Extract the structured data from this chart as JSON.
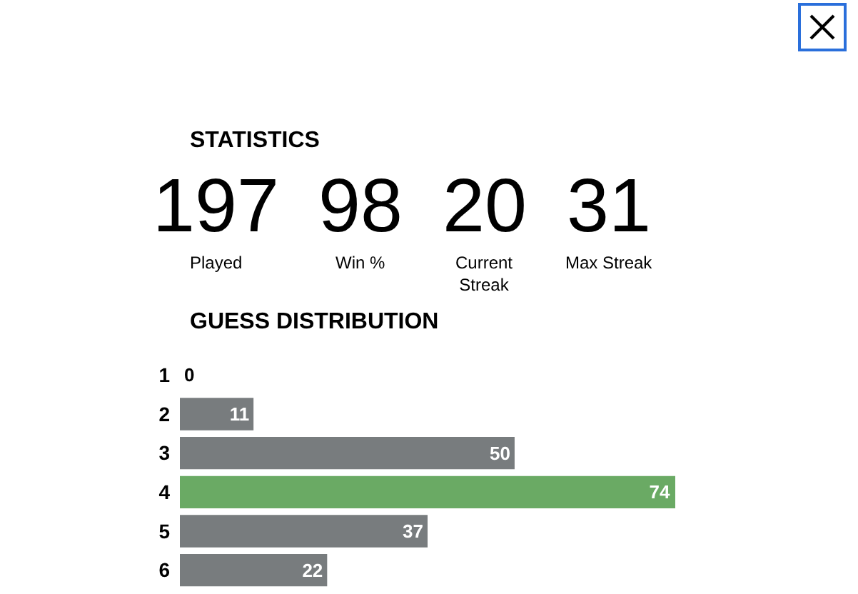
{
  "chart_data": [
    {
      "type": "other",
      "title": "STATISTICS",
      "categories": [
        "Played",
        "Win %",
        "Current Streak",
        "Max Streak"
      ],
      "values": [
        197,
        98,
        20,
        31
      ],
      "data_labels": true
    },
    {
      "type": "bar",
      "title": "GUESS DISTRIBUTION",
      "orientation": "horizontal",
      "categories": [
        "1",
        "2",
        "3",
        "4",
        "5",
        "6"
      ],
      "values": [
        0,
        11,
        50,
        74,
        37,
        22
      ],
      "colors": [
        "#787c7e",
        "#787c7e",
        "#787c7e",
        "#6aaa64",
        "#787c7e",
        "#787c7e"
      ],
      "data_labels": true,
      "tick_labels": "y"
    }
  ]
}
